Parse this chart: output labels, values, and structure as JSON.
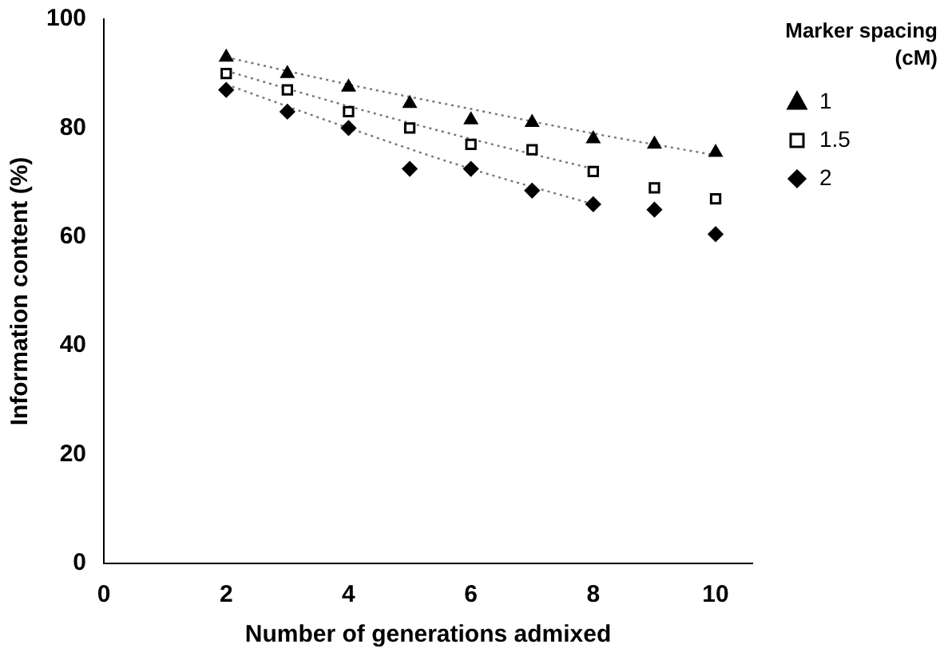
{
  "chart_data": {
    "type": "scatter",
    "xlabel": "Number of generations admixed",
    "ylabel": "Information content (%)",
    "legend_title": "Marker spacing (cM)",
    "legend": "right",
    "grid": false,
    "xlim": [
      0,
      10.6
    ],
    "xticks": [
      0,
      2,
      4,
      6,
      8,
      10
    ],
    "ylim": [
      0,
      100
    ],
    "yticks": [
      0,
      20,
      40,
      60,
      80,
      100
    ],
    "series": [
      {
        "name": "1",
        "color": "#000000",
        "marker": "triangle",
        "x": [
          2,
          3,
          4,
          5,
          6,
          7,
          8,
          9,
          10
        ],
        "values": [
          93,
          90,
          87.5,
          84.5,
          81.5,
          81,
          78,
          77,
          75.5
        ]
      },
      {
        "name": "1.5",
        "color": "#000000",
        "marker": "square",
        "x": [
          2,
          3,
          4,
          5,
          6,
          7,
          8,
          9,
          10
        ],
        "values": [
          90,
          87,
          83,
          80,
          77,
          76,
          72,
          69,
          67
        ]
      },
      {
        "name": "2",
        "color": "#000000",
        "marker": "diamond",
        "x": [
          2,
          3,
          4,
          5,
          6,
          7,
          8,
          9,
          10
        ],
        "values": [
          87,
          83,
          80,
          72.5,
          72.5,
          68.5,
          66,
          65,
          60.5
        ]
      },
      {
        "type": "line",
        "color": "#777777",
        "line_style": "dotted",
        "marker": "none",
        "x": [
          2,
          4,
          6,
          8,
          10
        ],
        "values": [
          93,
          88,
          83.5,
          79,
          75
        ]
      },
      {
        "type": "line",
        "color": "#777777",
        "line_style": "dotted",
        "marker": "none",
        "x": [
          2,
          4,
          6,
          8
        ],
        "values": [
          90.5,
          84,
          78,
          72.5
        ]
      },
      {
        "type": "line",
        "color": "#777777",
        "line_style": "dotted",
        "marker": "none",
        "x": [
          2,
          4,
          6,
          8
        ],
        "values": [
          88,
          80,
          72.5,
          66
        ]
      }
    ]
  }
}
